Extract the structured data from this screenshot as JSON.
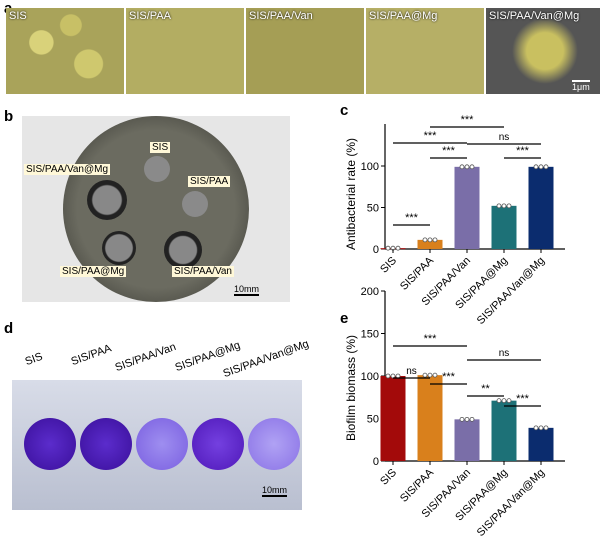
{
  "panels": {
    "a": "a",
    "b": "b",
    "c": "c",
    "d": "d",
    "e": "e"
  },
  "groups": [
    "SIS",
    "SIS/PAA",
    "SIS/PAA/Van",
    "SIS/PAA@Mg",
    "SIS/PAA/Van@Mg"
  ],
  "scale_bars": {
    "a": "1μm",
    "b": "10mm",
    "d": "10mm"
  },
  "colors": [
    "#a30a0a",
    "#d9801c",
    "#7a6ea8",
    "#1d7177",
    "#0b2c6e"
  ],
  "chart_data": [
    {
      "type": "bar",
      "panel": "c",
      "ylabel": "Antibacterial rate (%)",
      "categories": [
        "SIS",
        "SIS/PAA",
        "SIS/PAA/Van",
        "SIS/PAA@Mg",
        "SIS/PAA/Van@Mg"
      ],
      "values": [
        1,
        11,
        99,
        52,
        99
      ],
      "yticks": [
        0,
        50,
        100
      ],
      "ylim": [
        0,
        150
      ],
      "significance": [
        {
          "from": 0,
          "to": 1,
          "label": "***"
        },
        {
          "from": 1,
          "to": 2,
          "label": "***"
        },
        {
          "from": 0,
          "to": 2,
          "label": "***"
        },
        {
          "from": 2,
          "to": 4,
          "label": "ns"
        },
        {
          "from": 1,
          "to": 3,
          "label": "***"
        },
        {
          "from": 3,
          "to": 4,
          "label": "***"
        }
      ]
    },
    {
      "type": "bar",
      "panel": "e",
      "ylabel": "Biofilm biomass (%)",
      "categories": [
        "SIS",
        "SIS/PAA",
        "SIS/PAA/Van",
        "SIS/PAA@Mg",
        "SIS/PAA/Van@Mg"
      ],
      "values": [
        100,
        101,
        49,
        71,
        39
      ],
      "yticks": [
        0,
        50,
        100,
        150,
        200
      ],
      "ylim": [
        0,
        200
      ],
      "significance": [
        {
          "from": 0,
          "to": 2,
          "label": "***"
        },
        {
          "from": 2,
          "to": 4,
          "label": "ns"
        },
        {
          "from": 0,
          "to": 1,
          "label": "ns"
        },
        {
          "from": 1,
          "to": 2,
          "label": "***"
        },
        {
          "from": 2,
          "to": 3,
          "label": "**"
        },
        {
          "from": 3,
          "to": 4,
          "label": "***"
        }
      ]
    }
  ]
}
